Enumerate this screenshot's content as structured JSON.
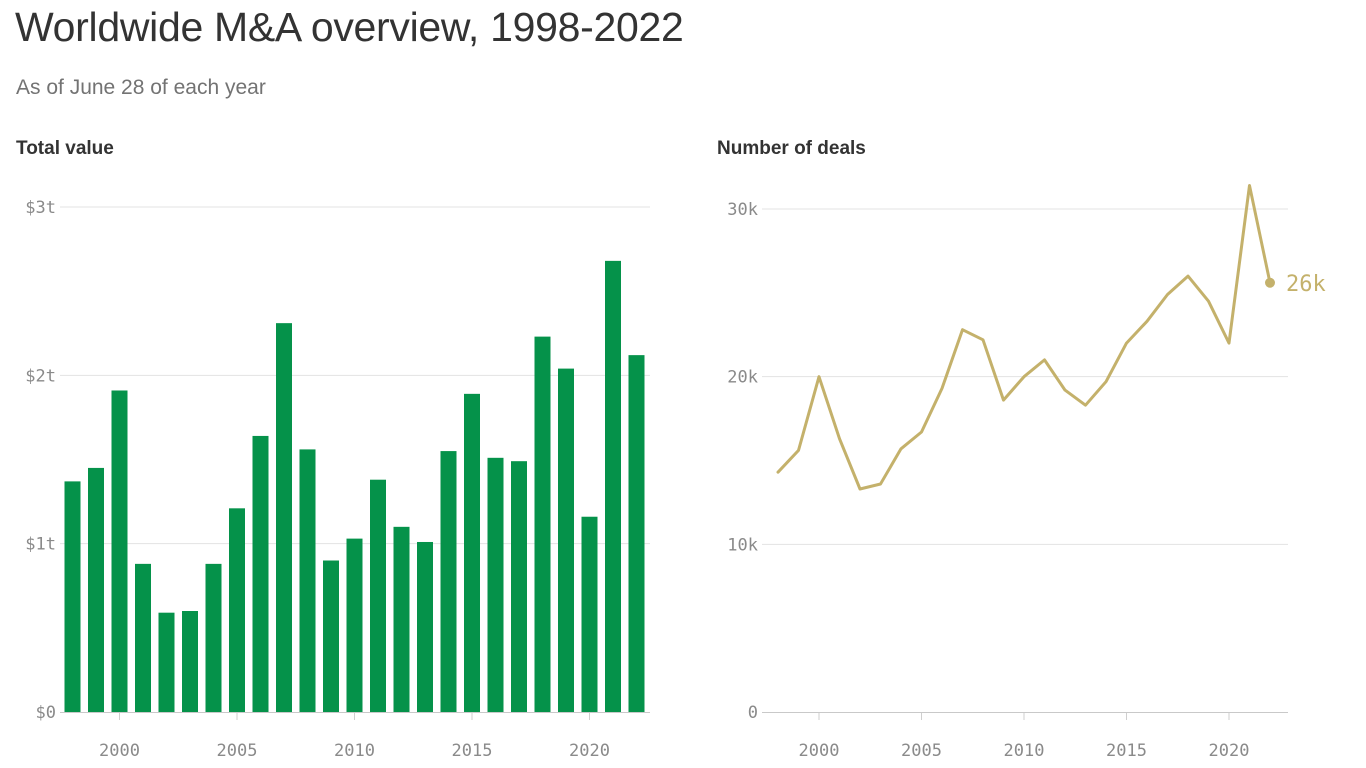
{
  "title": "Worldwide M&A overview, 1998-2022",
  "subtitle": "As of June 28 of each year",
  "colors": {
    "bars": "#05924a",
    "line": "#c4b16b",
    "title": "#333333",
    "subtitle": "#737373",
    "tick": "#8a8a8a",
    "grid": "#e3e3e3"
  },
  "chart_data": [
    {
      "type": "bar",
      "title": "Total value",
      "xlabel": "",
      "ylabel": "",
      "x": [
        1998,
        1999,
        2000,
        2001,
        2002,
        2003,
        2004,
        2005,
        2006,
        2007,
        2008,
        2009,
        2010,
        2011,
        2012,
        2013,
        2014,
        2015,
        2016,
        2017,
        2018,
        2019,
        2020,
        2021,
        2022
      ],
      "values": [
        1.37,
        1.45,
        1.91,
        0.88,
        0.59,
        0.6,
        0.88,
        1.21,
        1.64,
        2.31,
        1.56,
        0.9,
        1.03,
        1.38,
        1.1,
        1.01,
        1.55,
        1.89,
        1.51,
        1.49,
        2.23,
        2.04,
        1.16,
        2.68,
        2.12
      ],
      "unit": "trillion USD",
      "ylim": [
        0,
        3
      ],
      "y_ticks": [
        0,
        1,
        2,
        3
      ],
      "y_tick_labels": [
        "$0",
        "$1t",
        "$2t",
        "$3t"
      ],
      "x_ticks": [
        2000,
        2005,
        2010,
        2015,
        2020
      ],
      "x_tick_labels": [
        "2000",
        "2005",
        "2010",
        "2015",
        "2020"
      ],
      "grid": true,
      "legend": "none"
    },
    {
      "type": "line",
      "title": "Number of deals",
      "xlabel": "",
      "ylabel": "",
      "x": [
        1998,
        1999,
        2000,
        2001,
        2002,
        2003,
        2004,
        2005,
        2006,
        2007,
        2008,
        2009,
        2010,
        2011,
        2012,
        2013,
        2014,
        2015,
        2016,
        2017,
        2018,
        2019,
        2020,
        2021,
        2022
      ],
      "values": [
        14300,
        15600,
        20000,
        16300,
        13300,
        13600,
        15700,
        16700,
        19300,
        22800,
        22200,
        18600,
        20000,
        21000,
        19200,
        18300,
        19700,
        22000,
        23300,
        24900,
        26000,
        24500,
        22000,
        31400,
        25600
      ],
      "ylim": [
        0,
        30000
      ],
      "y_ticks": [
        0,
        10000,
        20000,
        30000
      ],
      "y_tick_labels": [
        "0",
        "10k",
        "20k",
        "30k"
      ],
      "x_ticks": [
        2000,
        2005,
        2010,
        2015,
        2020
      ],
      "x_tick_labels": [
        "2000",
        "2005",
        "2010",
        "2015",
        "2020"
      ],
      "end_label": "26k",
      "grid": true,
      "legend": "none"
    }
  ]
}
